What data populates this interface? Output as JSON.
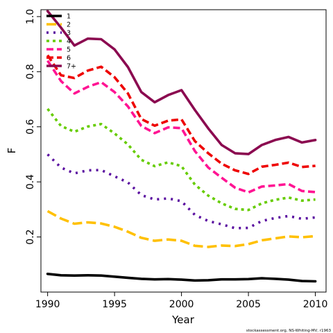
{
  "chart_data": {
    "type": "line",
    "xlabel": "Year",
    "ylabel": "F",
    "xlim": [
      1989.5,
      2010.8
    ],
    "ylim": [
      0.0,
      1.025
    ],
    "xticks": [
      1990,
      1995,
      2000,
      2005,
      2010
    ],
    "yticks": [
      0.2,
      0.4,
      0.6,
      0.8,
      1.0
    ],
    "ytick_labels": [
      "0.2",
      "0.4",
      "0.6",
      "0.8",
      "1.0"
    ],
    "legend_position": "top-left",
    "grid": false,
    "x": [
      1990,
      1991,
      1992,
      1993,
      1994,
      1995,
      1996,
      1997,
      1998,
      1999,
      2000,
      2001,
      2002,
      2003,
      2004,
      2005,
      2006,
      2007,
      2008,
      2009,
      2010
    ],
    "series": [
      {
        "name": "1",
        "color": "#000000",
        "dash": "solid",
        "values": [
          0.066,
          0.061,
          0.06,
          0.061,
          0.06,
          0.056,
          0.052,
          0.048,
          0.046,
          0.047,
          0.045,
          0.042,
          0.043,
          0.046,
          0.046,
          0.047,
          0.05,
          0.048,
          0.045,
          0.04,
          0.039
        ]
      },
      {
        "name": "2",
        "color": "#ffc000",
        "dash": "long",
        "values": [
          0.294,
          0.267,
          0.248,
          0.253,
          0.249,
          0.237,
          0.219,
          0.197,
          0.186,
          0.191,
          0.186,
          0.168,
          0.164,
          0.169,
          0.167,
          0.174,
          0.188,
          0.195,
          0.202,
          0.199,
          0.203
        ]
      },
      {
        "name": "3",
        "color": "#5a0fa0",
        "dash": "dot",
        "values": [
          0.5,
          0.452,
          0.431,
          0.442,
          0.443,
          0.42,
          0.398,
          0.352,
          0.336,
          0.34,
          0.33,
          0.28,
          0.258,
          0.246,
          0.232,
          0.233,
          0.258,
          0.269,
          0.276,
          0.266,
          0.271
        ]
      },
      {
        "name": "4",
        "color": "#66cc00",
        "dash": "dotdash",
        "values": [
          0.665,
          0.603,
          0.582,
          0.601,
          0.61,
          0.576,
          0.536,
          0.48,
          0.457,
          0.471,
          0.457,
          0.39,
          0.35,
          0.322,
          0.302,
          0.298,
          0.322,
          0.335,
          0.343,
          0.332,
          0.336
        ]
      },
      {
        "name": "5",
        "color": "#ff1493",
        "dash": "dash",
        "values": [
          0.84,
          0.766,
          0.721,
          0.745,
          0.762,
          0.726,
          0.674,
          0.603,
          0.577,
          0.598,
          0.595,
          0.512,
          0.452,
          0.415,
          0.379,
          0.362,
          0.383,
          0.387,
          0.392,
          0.367,
          0.363
        ]
      },
      {
        "name": "6",
        "color": "#ee0000",
        "dash": "dash",
        "values": [
          0.86,
          0.787,
          0.777,
          0.804,
          0.818,
          0.78,
          0.721,
          0.628,
          0.604,
          0.622,
          0.627,
          0.548,
          0.504,
          0.466,
          0.442,
          0.429,
          0.455,
          0.462,
          0.47,
          0.454,
          0.458
        ]
      },
      {
        "name": "7+",
        "color": "#8b0a50",
        "dash": "solid",
        "values": [
          1.02,
          0.96,
          0.895,
          0.92,
          0.918,
          0.881,
          0.817,
          0.726,
          0.689,
          0.715,
          0.733,
          0.661,
          0.594,
          0.534,
          0.504,
          0.501,
          0.534,
          0.552,
          0.563,
          0.543,
          0.552
        ]
      }
    ],
    "credit": "stockassessment.org, NS-Whiting-MV, r1963"
  }
}
